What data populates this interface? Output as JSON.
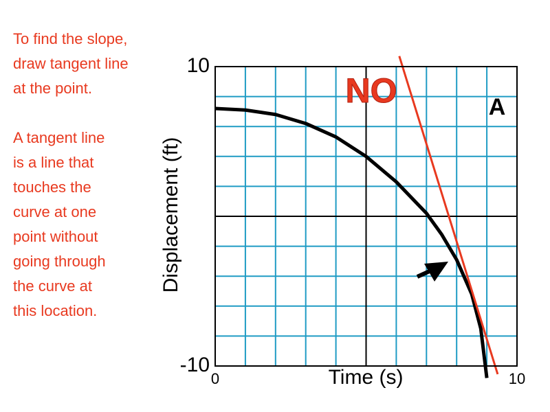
{
  "chart_data": {
    "type": "line",
    "x_label": "Time (s)",
    "y_label": "Displacement (ft)",
    "xlim": [
      0,
      10
    ],
    "ylim": [
      -10,
      10
    ],
    "xticks": [
      0,
      10
    ],
    "yticks": [
      -10,
      10
    ],
    "x_grid": [
      0,
      1,
      2,
      3,
      4,
      5,
      6,
      7,
      8,
      9,
      10
    ],
    "y_grid": [
      -10,
      -8,
      -6,
      -4,
      -2,
      0,
      2,
      4,
      6,
      8,
      10
    ],
    "major_grid": {
      "x": 5,
      "y": 0
    },
    "grid_color": "#1e9bc4",
    "series": [
      {
        "color": "#000000",
        "x": [
          0,
          1,
          2,
          3,
          4,
          5,
          6,
          7,
          7.5,
          8,
          8.5,
          8.8,
          9
        ],
        "values": [
          7.2,
          7.1,
          6.8,
          6.2,
          5.3,
          4.0,
          2.3,
          0.2,
          -1.2,
          -2.9,
          -5.2,
          -7.5,
          -10.8
        ]
      },
      {
        "color": "#e8391f",
        "x": [
          6.1,
          9.36
        ],
        "values": [
          10.7,
          -10.55
        ]
      }
    ],
    "annotations": {
      "no": "NO",
      "label": "A"
    },
    "notes": [
      [
        "To find the slope,",
        "draw tangent line",
        "at the point."
      ],
      [
        "A tangent line",
        "is a line that",
        "touches the",
        "curve at one",
        "point without",
        "going through",
        "the curve at",
        "this location."
      ]
    ]
  }
}
